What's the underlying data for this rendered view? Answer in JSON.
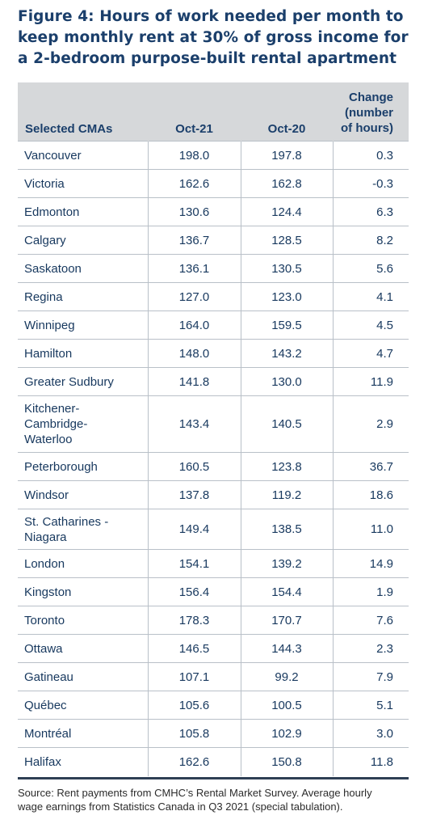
{
  "title_lines": [
    "Figure 4: Hours of work needed per month to",
    "keep monthly rent at 30% of gross income for",
    "a 2-bedroom purpose-built rental apartment"
  ],
  "headers": {
    "cma": "Selected CMAs",
    "oct21": "Oct-21",
    "oct20": "Oct-20",
    "change_lines": [
      "Change",
      "(number",
      "of hours)"
    ]
  },
  "rows": [
    {
      "name_lines": [
        "Vancouver"
      ],
      "oct21": "198.0",
      "oct20": "197.8",
      "change": "0.3"
    },
    {
      "name_lines": [
        "Victoria"
      ],
      "oct21": "162.6",
      "oct20": "162.8",
      "change": "-0.3"
    },
    {
      "name_lines": [
        "Edmonton"
      ],
      "oct21": "130.6",
      "oct20": "124.4",
      "change": "6.3"
    },
    {
      "name_lines": [
        "Calgary"
      ],
      "oct21": "136.7",
      "oct20": "128.5",
      "change": "8.2"
    },
    {
      "name_lines": [
        "Saskatoon"
      ],
      "oct21": "136.1",
      "oct20": "130.5",
      "change": "5.6"
    },
    {
      "name_lines": [
        "Regina"
      ],
      "oct21": "127.0",
      "oct20": "123.0",
      "change": "4.1"
    },
    {
      "name_lines": [
        "Winnipeg"
      ],
      "oct21": "164.0",
      "oct20": "159.5",
      "change": "4.5"
    },
    {
      "name_lines": [
        "Hamilton"
      ],
      "oct21": "148.0",
      "oct20": "143.2",
      "change": "4.7"
    },
    {
      "name_lines": [
        "Greater Sudbury"
      ],
      "oct21": "141.8",
      "oct20": "130.0",
      "change": "11.9"
    },
    {
      "name_lines": [
        "Kitchener-",
        "Cambridge-",
        "Waterloo"
      ],
      "oct21": "143.4",
      "oct20": "140.5",
      "change": "2.9"
    },
    {
      "name_lines": [
        "Peterborough"
      ],
      "oct21": "160.5",
      "oct20": "123.8",
      "change": "36.7"
    },
    {
      "name_lines": [
        "Windsor"
      ],
      "oct21": "137.8",
      "oct20": "119.2",
      "change": "18.6"
    },
    {
      "name_lines": [
        "St. Catharines -",
        "Niagara"
      ],
      "oct21": "149.4",
      "oct20": "138.5",
      "change": "11.0"
    },
    {
      "name_lines": [
        "London"
      ],
      "oct21": "154.1",
      "oct20": "139.2",
      "change": "14.9"
    },
    {
      "name_lines": [
        "Kingston"
      ],
      "oct21": "156.4",
      "oct20": "154.4",
      "change": "1.9"
    },
    {
      "name_lines": [
        "Toronto"
      ],
      "oct21": "178.3",
      "oct20": "170.7",
      "change": "7.6"
    },
    {
      "name_lines": [
        "Ottawa"
      ],
      "oct21": "146.5",
      "oct20": "144.3",
      "change": "2.3"
    },
    {
      "name_lines": [
        "Gatineau"
      ],
      "oct21": "107.1",
      "oct20": "99.2",
      "change": "7.9"
    },
    {
      "name_lines": [
        "Québec"
      ],
      "oct21": "105.6",
      "oct20": "100.5",
      "change": "5.1"
    },
    {
      "name_lines": [
        "Montréal"
      ],
      "oct21": "105.8",
      "oct20": "102.9",
      "change": "3.0"
    },
    {
      "name_lines": [
        "Halifax"
      ],
      "oct21": "162.6",
      "oct20": "150.8",
      "change": "11.8"
    }
  ],
  "source_lines": [
    "Source: Rent payments from CMHC’s Rental Market Survey. Average hourly",
    "wage earnings from Statistics Canada in Q3 2021 (special tabulation)."
  ]
}
